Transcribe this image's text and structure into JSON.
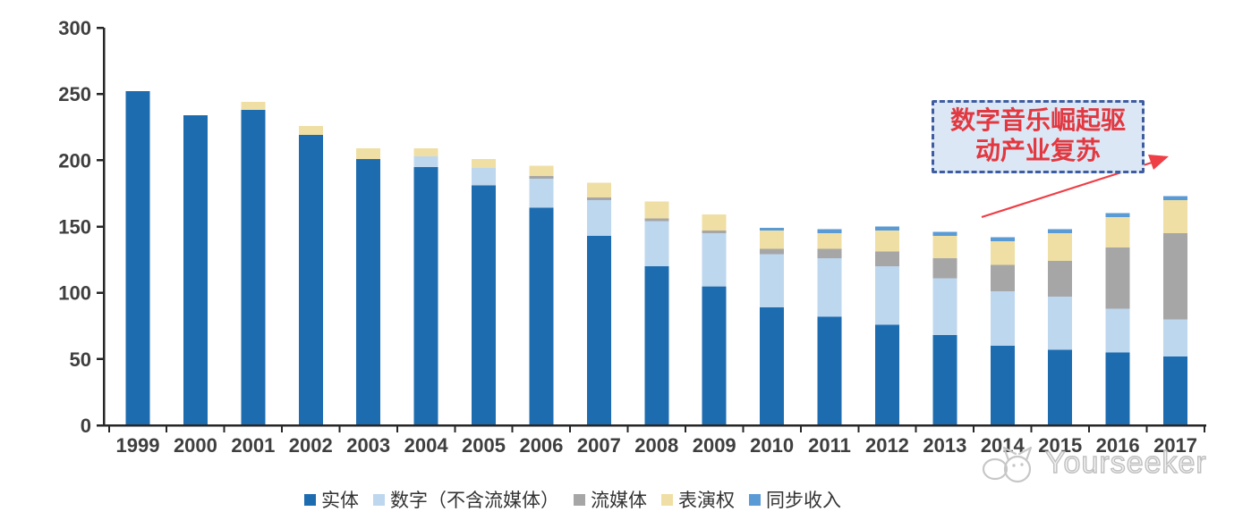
{
  "chart_data": {
    "type": "bar",
    "stacked": true,
    "title": "",
    "xlabel": "",
    "ylabel": "",
    "categories": [
      "1999",
      "2000",
      "2001",
      "2002",
      "2003",
      "2004",
      "2005",
      "2006",
      "2007",
      "2008",
      "2009",
      "2010",
      "2011",
      "2012",
      "2013",
      "2014",
      "2015",
      "2016",
      "2017"
    ],
    "series": [
      {
        "name": "实体",
        "color": "#1E6CB0",
        "values": [
          252,
          234,
          238,
          219,
          201,
          195,
          181,
          164,
          143,
          120,
          105,
          89,
          82,
          76,
          68,
          60,
          57,
          55,
          52
        ]
      },
      {
        "name": "数字（不含流媒体）",
        "color": "#BDD7EE",
        "values": [
          0,
          0,
          0,
          0,
          0,
          8,
          13,
          22,
          27,
          34,
          40,
          40,
          44,
          44,
          43,
          41,
          40,
          33,
          28
        ]
      },
      {
        "name": "流媒体",
        "color": "#A6A6A6",
        "values": [
          0,
          0,
          0,
          0,
          0,
          0,
          0,
          2,
          2,
          2,
          2,
          4,
          7,
          11,
          15,
          20,
          27,
          46,
          65
        ]
      },
      {
        "name": "表演权",
        "color": "#EFDFA4",
        "values": [
          0,
          0,
          6,
          7,
          8,
          6,
          7,
          8,
          11,
          13,
          12,
          14,
          12,
          16,
          17,
          18,
          21,
          23,
          25
        ]
      },
      {
        "name": "同步收入",
        "color": "#5B9BD5",
        "values": [
          0,
          0,
          0,
          0,
          0,
          0,
          0,
          0,
          0,
          0,
          0,
          2,
          3,
          3,
          3,
          3,
          3,
          3,
          3
        ]
      }
    ],
    "ylim": [
      0,
      300
    ],
    "yticks": [
      0,
      50,
      100,
      150,
      200,
      250,
      300
    ],
    "grid": false,
    "legend_position": "bottom",
    "annotation_text": "数字音乐崛起驱动产业复苏"
  },
  "annotation": {
    "line1": "数字音乐崛起驱",
    "line2": "动产业复苏",
    "text_color": "#E23840",
    "box_fill": "#DBE7F5",
    "box_border": "#3E5C9F",
    "arrow_color": "#EE3E46"
  },
  "axis": {
    "color": "#262626",
    "label_color": "#3F3F3F"
  },
  "watermark": {
    "text": "Yourseeker"
  }
}
